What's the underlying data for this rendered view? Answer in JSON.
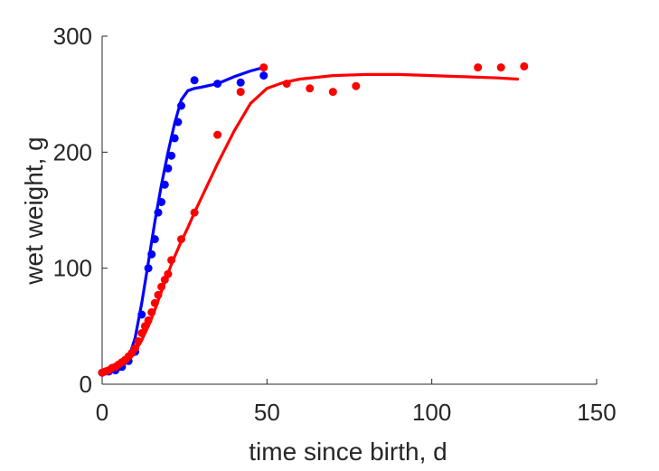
{
  "chart_data": {
    "type": "scatter",
    "title": "",
    "xlabel": "time since birth, d",
    "ylabel": "wet weight, g",
    "xlim": [
      0,
      150
    ],
    "ylim": [
      0,
      300
    ],
    "xticks": [
      0,
      50,
      100,
      150
    ],
    "yticks": [
      0,
      100,
      200,
      300
    ],
    "xtick_labels": [
      "0",
      "50",
      "100",
      "150"
    ],
    "ytick_labels": [
      "0",
      "100",
      "200",
      "300"
    ],
    "grid": false,
    "legend": "none",
    "series": [
      {
        "color": "#0000ff",
        "points": {
          "x": [
            0,
            2,
            4,
            6,
            8,
            10,
            12,
            14,
            15,
            16,
            17,
            18,
            19,
            20,
            21,
            22,
            23,
            24,
            28,
            35,
            42,
            49
          ],
          "y": [
            10,
            11,
            12,
            15,
            20,
            28,
            60,
            100,
            112,
            125,
            148,
            157,
            172,
            186,
            197,
            212,
            226,
            240,
            262,
            259,
            260,
            266
          ]
        },
        "curve": {
          "x": [
            0,
            4,
            6,
            8,
            10,
            12,
            14,
            16,
            18,
            20,
            22,
            24,
            26,
            28,
            30,
            35,
            40,
            45,
            49
          ],
          "y": [
            10,
            11,
            14,
            22,
            40,
            70,
            105,
            140,
            172,
            200,
            225,
            245,
            253,
            255,
            256,
            259,
            265,
            270,
            273
          ]
        }
      },
      {
        "color": "#ff0000",
        "points": {
          "x": [
            0,
            1,
            2,
            3,
            4,
            5,
            6,
            7,
            8,
            9,
            10,
            11,
            12,
            13,
            14,
            15,
            16,
            17,
            18,
            19,
            20,
            21,
            24,
            28,
            35,
            42,
            49,
            56,
            63,
            70,
            77,
            114,
            121,
            128
          ],
          "y": [
            10,
            11,
            12,
            14,
            15,
            17,
            19,
            21,
            24,
            27,
            31,
            37,
            44,
            50,
            55,
            62,
            70,
            77,
            84,
            90,
            95,
            107,
            125,
            148,
            215,
            252,
            273,
            259,
            255,
            252,
            257,
            273,
            273,
            274
          ]
        },
        "curve": {
          "x": [
            0,
            5,
            8,
            10,
            12,
            14,
            16,
            18,
            20,
            22,
            24,
            26,
            28,
            30,
            35,
            40,
            45,
            50,
            55,
            60,
            70,
            80,
            90,
            100,
            110,
            120,
            126
          ],
          "y": [
            10,
            14,
            20,
            28,
            38,
            50,
            64,
            80,
            96,
            110,
            123,
            135,
            148,
            160,
            190,
            218,
            242,
            255,
            260,
            263,
            266,
            267,
            267,
            266,
            265,
            264,
            263
          ]
        }
      }
    ]
  }
}
